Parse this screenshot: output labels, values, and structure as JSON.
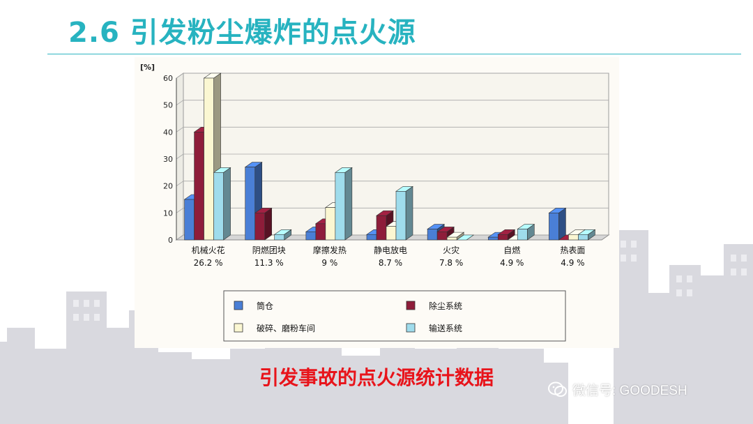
{
  "slide": {
    "title": "2.6 引发粉尘爆炸的点火源",
    "caption": "引发事故的点火源统计数据",
    "watermark": "微信号: GOODESH"
  },
  "colors": {
    "title": "#27b3c0",
    "caption": "#e8141b",
    "series": [
      "#4a7fd6",
      "#8e1d3a",
      "#fbf7d2",
      "#9fdcec"
    ]
  },
  "chart_data": {
    "type": "bar",
    "ylabel": "[%]",
    "ylim": [
      0,
      60
    ],
    "yticks": [
      0,
      10,
      20,
      30,
      40,
      50,
      60
    ],
    "grid": true,
    "legend_position": "bottom",
    "categories": [
      "机械火花",
      "阴燃团块",
      "摩擦发热",
      "静电放电",
      "火灾",
      "自燃",
      "热表面"
    ],
    "category_shares": [
      "26.2 %",
      "11.3 %",
      "9 %",
      "8.7 %",
      "7.8 %",
      "4.9 %",
      "4.9 %"
    ],
    "series": [
      {
        "name": "筒仓",
        "values": [
          15,
          27,
          3,
          2,
          4,
          1,
          10
        ]
      },
      {
        "name": "除尘系统",
        "values": [
          40,
          10,
          6,
          9,
          3,
          2,
          0
        ]
      },
      {
        "name": "破碎、磨粉车间",
        "values": [
          60,
          0,
          12,
          5,
          1,
          0,
          2
        ]
      },
      {
        "name": "输送系统",
        "values": [
          25,
          2,
          25,
          18,
          0,
          4,
          2
        ]
      }
    ]
  }
}
